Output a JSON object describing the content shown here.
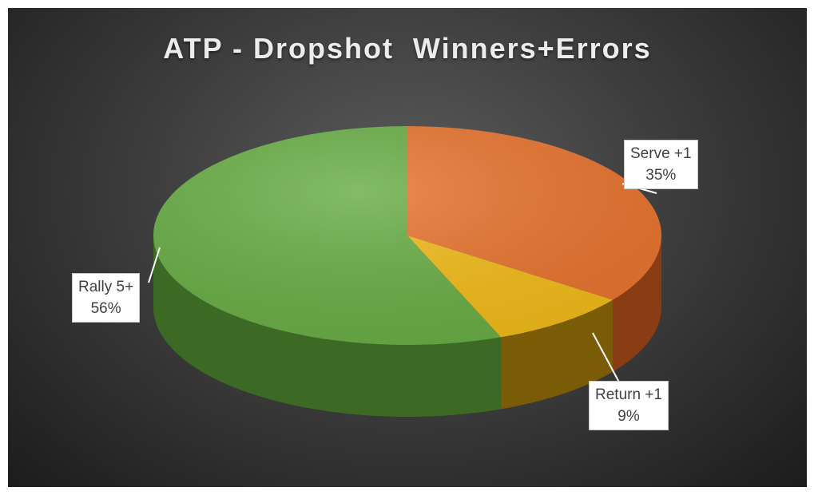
{
  "chart_data": {
    "type": "pie",
    "title": "ATP - Dropshot  Winners+Errors",
    "slices": [
      {
        "name": "Serve +1",
        "value": 35,
        "label": "35%",
        "color": "#e8732e",
        "side": "#8a3c12"
      },
      {
        "name": "Return +1",
        "value": 9,
        "label": "9%",
        "color": "#f2bb19",
        "side": "#7a5b06"
      },
      {
        "name": "Rally 5+",
        "value": 56,
        "label": "56%",
        "color": "#68ad45",
        "side": "#3c6a25"
      }
    ],
    "start_angle_deg": -90,
    "legend": "none",
    "data_labels": "callout boxes with category name and percent"
  }
}
